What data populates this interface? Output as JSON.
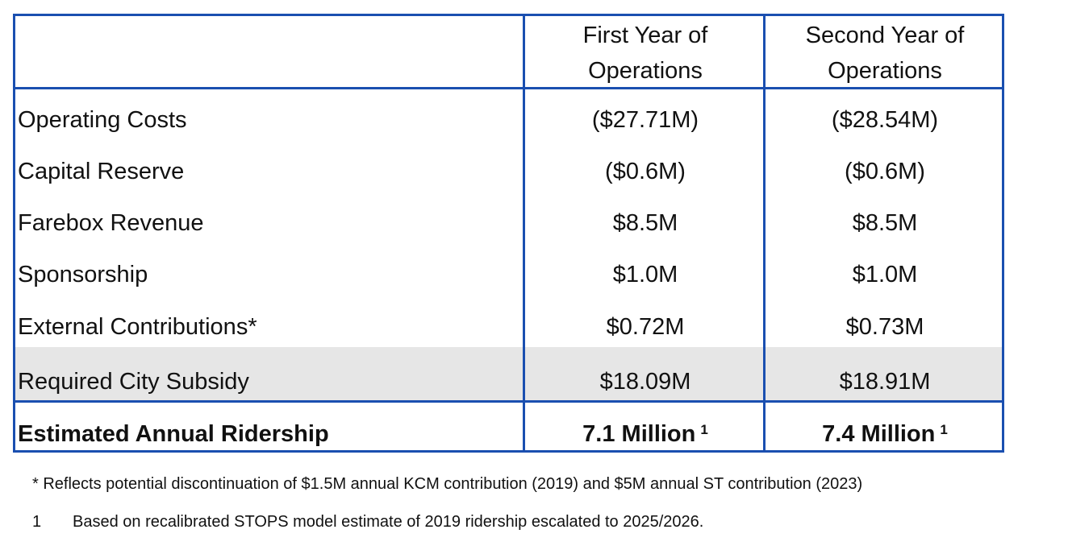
{
  "table": {
    "columns": [
      "",
      "First Year of Operations",
      "Second Year of Operations"
    ],
    "header_lines": {
      "first": [
        "First Year of",
        "Operations"
      ],
      "second": [
        "Second Year of",
        "Operations"
      ]
    },
    "rows": [
      {
        "label": "Operating Costs",
        "year1": "($27.71M)",
        "year2": "($28.54M)"
      },
      {
        "label": "Capital Reserve",
        "year1": "($0.6M)",
        "year2": "($0.6M)"
      },
      {
        "label": "Farebox Revenue",
        "year1": "$8.5M",
        "year2": "$8.5M"
      },
      {
        "label": "Sponsorship",
        "year1": "$1.0M",
        "year2": "$1.0M"
      },
      {
        "label": "External Contributions*",
        "year1": "$0.72M",
        "year2": "$0.73M"
      },
      {
        "label": "Required City Subsidy",
        "year1": "$18.09M",
        "year2": "$18.91M",
        "highlight": true
      }
    ],
    "total": {
      "label": "Estimated Annual Ridership",
      "year1": "7.1 Million",
      "year2": "7.4 Million",
      "footnote_marker": "1"
    },
    "border_color": "#1a4fb0",
    "highlight_color": "#e6e6e6"
  },
  "footnotes": {
    "star": "* Reflects potential discontinuation of $1.5M annual KCM contribution (2019) and $5M annual ST contribution (2023)",
    "one_marker": "1",
    "one_text": "Based on recalibrated STOPS model estimate of 2019 ridership escalated to 2025/2026."
  }
}
